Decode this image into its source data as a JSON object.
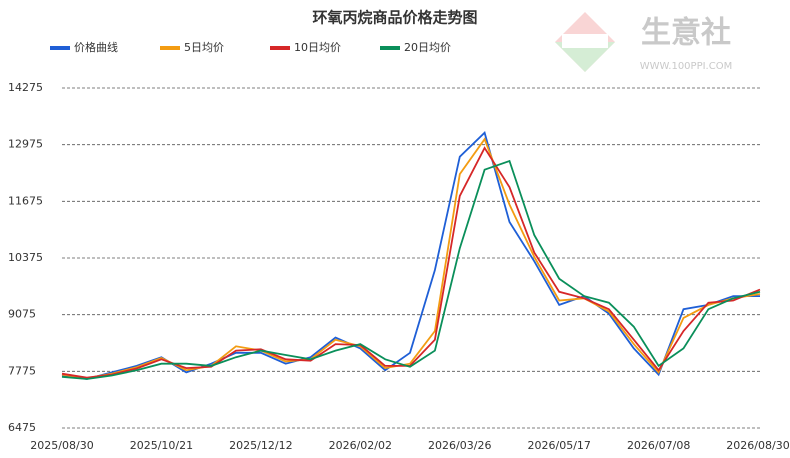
{
  "chart_data": {
    "type": "line",
    "title": "环氧丙烷商品价格走势图",
    "watermark": {
      "name": "生意社",
      "url": "WWW.100PPI.COM"
    },
    "x": [
      "2025/08/30",
      "2025/09/12",
      "2025/09/25",
      "2025/10/08",
      "2025/10/21",
      "2025/11/03",
      "2025/11/16",
      "2025/11/29",
      "2025/12/12",
      "2025/12/25",
      "2026/01/07",
      "2026/01/20",
      "2026/02/02",
      "2026/02/15",
      "2026/02/28",
      "2026/03/13",
      "2026/03/26",
      "2026/04/08",
      "2026/04/21",
      "2026/05/04",
      "2026/05/17",
      "2026/05/30",
      "2026/06/12",
      "2026/06/25",
      "2026/07/08",
      "2026/07/21",
      "2026/08/03",
      "2026/08/16",
      "2026/08/30"
    ],
    "xticks": [
      "2025/08/30",
      "2025/10/21",
      "2025/12/12",
      "2026/02/02",
      "2026/03/26",
      "2026/05/17",
      "2026/07/08",
      "2026/08/30"
    ],
    "ylim": [
      6475,
      14275
    ],
    "yticks": [
      6475,
      7775,
      9075,
      10375,
      11675,
      12975,
      14275
    ],
    "grid": true,
    "series": [
      {
        "name": "价格曲线",
        "color": "#1f5fd6",
        "values": [
          7680,
          7600,
          7750,
          7900,
          8100,
          7750,
          7950,
          8200,
          8200,
          7950,
          8100,
          8550,
          8300,
          7800,
          8200,
          10100,
          12700,
          13250,
          11200,
          10300,
          9300,
          9500,
          9100,
          8300,
          7700,
          9200,
          9300,
          9500,
          9500
        ]
      },
      {
        "name": "5日均价",
        "color": "#f39c12",
        "values": [
          7700,
          7620,
          7720,
          7870,
          8080,
          7800,
          7900,
          8350,
          8250,
          8000,
          8050,
          8500,
          8350,
          7850,
          7950,
          8700,
          12300,
          13100,
          11600,
          10400,
          9400,
          9450,
          9150,
          8400,
          7750,
          9000,
          9300,
          9450,
          9550
        ]
      },
      {
        "name": "10日均价",
        "color": "#d62728",
        "values": [
          7720,
          7630,
          7700,
          7840,
          8050,
          7850,
          7880,
          8250,
          8280,
          8050,
          8020,
          8400,
          8380,
          7900,
          7900,
          8500,
          11800,
          12900,
          12000,
          10500,
          9600,
          9450,
          9200,
          8500,
          7800,
          8700,
          9350,
          9400,
          9650
        ]
      },
      {
        "name": "20日均价",
        "color": "#0a8f5a",
        "values": [
          7650,
          7600,
          7680,
          7800,
          7950,
          7950,
          7900,
          8100,
          8250,
          8150,
          8050,
          8250,
          8400,
          8050,
          7880,
          8250,
          10600,
          12400,
          12600,
          10900,
          9900,
          9500,
          9350,
          8800,
          7900,
          8300,
          9200,
          9450,
          9600
        ]
      }
    ]
  }
}
